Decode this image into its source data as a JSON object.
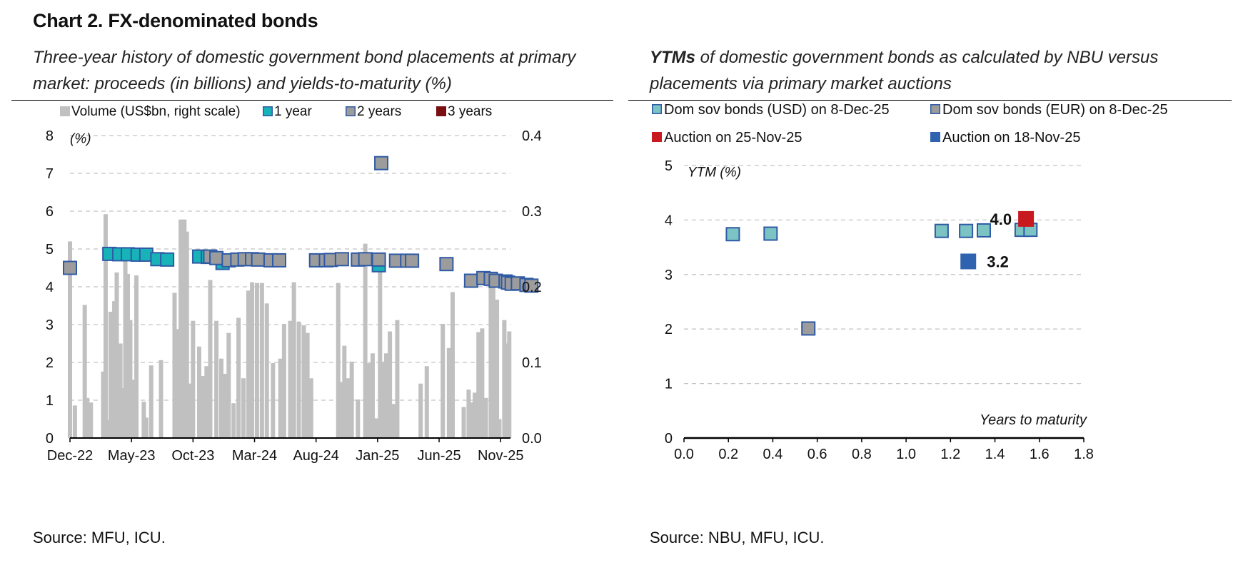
{
  "page": {
    "title": "Chart 2. FX-denominated bonds",
    "left_subtitle": "Three-year history of domestic government bond placements at primary market: proceeds (in billions) and yields-to-maturity (%)",
    "right_subtitle_lead": "YTMs",
    "right_subtitle_rest": " of domestic government bonds as calculated by NBU versus placements via primary market auctions",
    "left_source": "Source: MFU, ICU.",
    "right_source": "Source: NBU, MFU, ICU."
  },
  "chart_data": [
    {
      "type": "bar+scatter",
      "title": "",
      "y_unit_label": "(%)",
      "ylim": [
        0,
        8
      ],
      "y_ticks": [
        "0",
        "1",
        "2",
        "3",
        "4",
        "5",
        "6",
        "7",
        "8"
      ],
      "y2lim": [
        0,
        0.4
      ],
      "y2_ticks": [
        "0.0",
        "0.1",
        "0.2",
        "0.3",
        "0.4"
      ],
      "x_ticks": [
        "Dec-22",
        "May-23",
        "Oct-23",
        "Mar-24",
        "Aug-24",
        "Jan-25",
        "Jun-25",
        "Nov-25"
      ],
      "x_range_months": [
        0,
        35.8
      ],
      "grid": true,
      "legend": [
        {
          "name": "Volume (US$bn, right scale)",
          "color": "#c0c0c0",
          "shape": "bar"
        },
        {
          "name": "1 year",
          "color": "#17b3b8",
          "shape": "square"
        },
        {
          "name": "2 years",
          "color": "#9c9c9c",
          "shape": "square"
        },
        {
          "name": "3 years",
          "color": "#7a0f12",
          "shape": "square"
        }
      ],
      "volume_bars": {
        "name": "Volume (US$bn, right scale)",
        "t": [
          0.0,
          0.4,
          1.2,
          1.4,
          1.7,
          2.7,
          2.9,
          3.1,
          3.3,
          3.6,
          3.8,
          4.1,
          4.3,
          4.5,
          4.7,
          4.9,
          5.1,
          5.4,
          6.0,
          6.2,
          6.6,
          7.4,
          8.5,
          8.8,
          9.0,
          9.3,
          9.5,
          9.7,
          10.0,
          10.5,
          10.8,
          11.1,
          11.4,
          11.9,
          12.3,
          12.6,
          12.9,
          13.3,
          13.7,
          14.1,
          14.5,
          14.8,
          15.2,
          15.6,
          16.0,
          16.5,
          17.1,
          17.4,
          17.9,
          18.2,
          18.6,
          19.0,
          19.3,
          19.6,
          21.8,
          22.0,
          22.3,
          22.6,
          22.9,
          23.4,
          24.0,
          24.3,
          24.6,
          24.9,
          25.2,
          25.4,
          25.7,
          26.0,
          26.3,
          26.6,
          28.5,
          29.0,
          30.3,
          30.8,
          31.1,
          32.0,
          32.4,
          32.7,
          32.9,
          33.2,
          33.5,
          33.8,
          34.2,
          34.4,
          34.7,
          34.9,
          35.3,
          35.5,
          35.7
        ],
        "values": [
          0.26,
          0.043,
          0.176,
          0.053,
          0.047,
          0.088,
          0.296,
          0.024,
          0.167,
          0.181,
          0.219,
          0.125,
          0.066,
          0.235,
          0.217,
          0.156,
          0.077,
          0.215,
          0.048,
          0.027,
          0.096,
          0.103,
          0.192,
          0.144,
          0.289,
          0.289,
          0.273,
          0.072,
          0.155,
          0.121,
          0.082,
          0.095,
          0.209,
          0.155,
          0.105,
          0.085,
          0.139,
          0.046,
          0.159,
          0.079,
          0.195,
          0.206,
          0.205,
          0.205,
          0.178,
          0.099,
          0.105,
          0.151,
          0.155,
          0.206,
          0.154,
          0.149,
          0.139,
          0.079,
          0.205,
          0.074,
          0.122,
          0.079,
          0.101,
          0.051,
          0.257,
          0.099,
          0.112,
          0.026,
          0.23,
          0.101,
          0.112,
          0.141,
          0.045,
          0.156,
          0.072,
          0.095,
          0.151,
          0.119,
          0.193,
          0.041,
          0.064,
          0.047,
          0.06,
          0.14,
          0.145,
          0.053,
          0.21,
          0.205,
          0.183,
          0.025,
          0.156,
          0.125,
          0.141
        ]
      },
      "series": [
        {
          "name": "1 year",
          "color": "#17b3b8",
          "points": [
            [
              3.2,
              4.87
            ],
            [
              4.0,
              4.86
            ],
            [
              4.7,
              4.86
            ],
            [
              5.5,
              4.85
            ],
            [
              6.2,
              4.85
            ],
            [
              7.1,
              4.73
            ],
            [
              7.9,
              4.72
            ],
            [
              10.5,
              4.8
            ],
            [
              11.2,
              4.79
            ],
            [
              12.4,
              4.63
            ],
            [
              25.1,
              4.57
            ]
          ]
        },
        {
          "name": "2 years",
          "color": "#9c9c9c",
          "points": [
            [
              0.0,
              4.5
            ],
            [
              11.4,
              4.8
            ],
            [
              11.9,
              4.76
            ],
            [
              12.9,
              4.7
            ],
            [
              13.6,
              4.72
            ],
            [
              14.2,
              4.73
            ],
            [
              14.8,
              4.73
            ],
            [
              15.3,
              4.72
            ],
            [
              16.3,
              4.7
            ],
            [
              17.0,
              4.7
            ],
            [
              20.0,
              4.7
            ],
            [
              20.8,
              4.7
            ],
            [
              21.2,
              4.71
            ],
            [
              22.1,
              4.73
            ],
            [
              23.4,
              4.72
            ],
            [
              24.0,
              4.73
            ],
            [
              25.1,
              4.72
            ],
            [
              25.3,
              7.27
            ],
            [
              26.5,
              4.69
            ],
            [
              27.4,
              4.69
            ],
            [
              27.8,
              4.69
            ],
            [
              30.6,
              4.6
            ],
            [
              32.6,
              4.16
            ],
            [
              33.6,
              4.23
            ],
            [
              34.2,
              4.21
            ],
            [
              34.6,
              4.16
            ],
            [
              35.4,
              4.14
            ],
            [
              35.6,
              4.11
            ],
            [
              35.9,
              4.08
            ],
            [
              36.4,
              4.09
            ],
            [
              37.1,
              4.05
            ],
            [
              37.5,
              4.03
            ]
          ]
        },
        {
          "name": "3 years",
          "color": "#7a0f12",
          "points": []
        }
      ]
    },
    {
      "type": "scatter",
      "title": "",
      "ylabel": "YTM (%)",
      "xlabel": "Years to maturity",
      "xlim": [
        0,
        1.8
      ],
      "ylim": [
        0,
        5
      ],
      "x_ticks": [
        "0.0",
        "0.2",
        "0.4",
        "0.6",
        "0.8",
        "1.0",
        "1.2",
        "1.4",
        "1.6",
        "1.8"
      ],
      "y_ticks": [
        "0",
        "1",
        "2",
        "3",
        "4",
        "5"
      ],
      "grid": true,
      "legend": [
        {
          "name": "Dom sov bonds (USD) on 8-Dec-25",
          "color": "#7cc4c4"
        },
        {
          "name": "Dom sov bonds (EUR) on 8-Dec-25",
          "color": "#9c9c9c"
        },
        {
          "name": "Auction on 25-Nov-25",
          "color": "#c8191e"
        },
        {
          "name": "Auction on 18-Nov-25",
          "color": "#2f63b0"
        }
      ],
      "series": [
        {
          "name": "Dom sov bonds (USD) on 8-Dec-25",
          "color": "#7cc4c4",
          "points": [
            [
              0.22,
              3.74
            ],
            [
              0.39,
              3.75
            ],
            [
              1.16,
              3.8
            ],
            [
              1.27,
              3.8
            ],
            [
              1.35,
              3.81
            ],
            [
              1.52,
              3.82
            ],
            [
              1.56,
              3.82
            ]
          ]
        },
        {
          "name": "Dom sov bonds (EUR) on 8-Dec-25",
          "color": "#9c9c9c",
          "points": [
            [
              0.56,
              2.01
            ]
          ]
        },
        {
          "name": "Auction on 25-Nov-25",
          "color": "#c8191e",
          "points": [
            [
              1.54,
              4.02
            ]
          ],
          "label": "4.0"
        },
        {
          "name": "Auction on 18-Nov-25",
          "color": "#2f63b0",
          "points": [
            [
              1.28,
              3.24
            ]
          ],
          "label": "3.2"
        }
      ]
    }
  ]
}
